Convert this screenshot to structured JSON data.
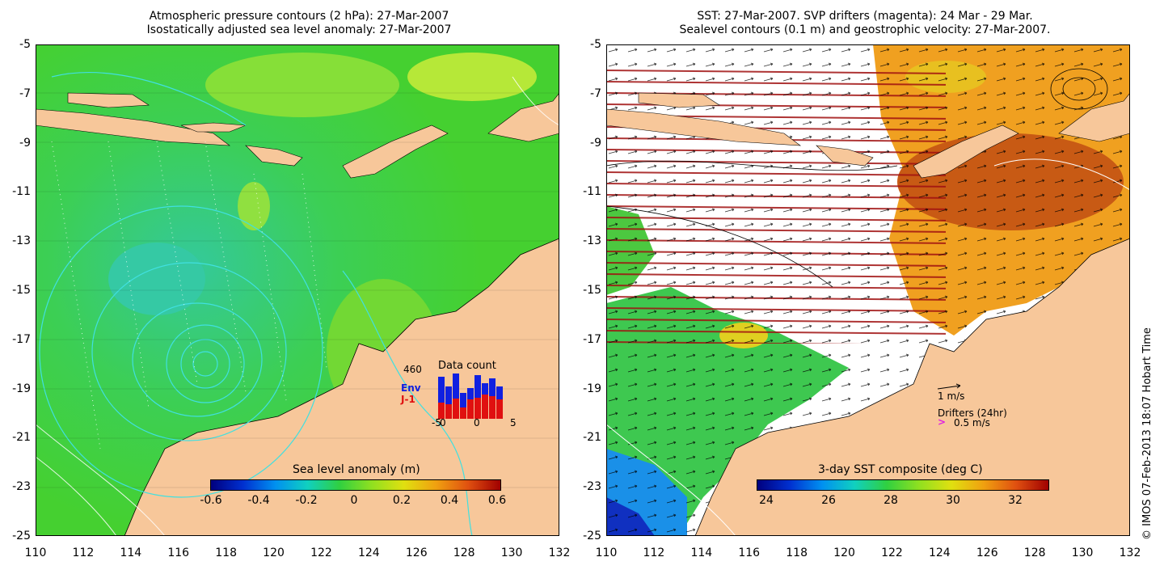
{
  "left_panel": {
    "title_line1": "Atmospheric pressure contours (2 hPa): 27-Mar-2007",
    "title_line2": "Isostatically adjusted sea level anomaly: 27-Mar-2007",
    "colorbar_title": "Sea level anomaly (m)",
    "colorbar_ticks": [
      "-0.6",
      "-0.4",
      "-0.2",
      "0",
      "0.2",
      "0.4",
      "0.6"
    ],
    "inset": {
      "count_label": "460",
      "title": "Data count",
      "legend_env": "Env",
      "legend_j1": "J-1",
      "xticks": [
        "-5",
        "0",
        "0",
        "5"
      ],
      "env_color": "#1020e0",
      "j1_color": "#e01010"
    }
  },
  "right_panel": {
    "title_line1": "SST: 27-Mar-2007. SVP drifters (magenta): 24 Mar - 29 Mar.",
    "title_line2": "Sealevel contours (0.1 m) and geostrophic velocity: 27-Mar-2007.",
    "colorbar_title": "3-day SST composite (deg C)",
    "colorbar_ticks": [
      "24",
      "26",
      "28",
      "30",
      "32"
    ],
    "velocity_label": "1 m/s",
    "drifters_label": "Drifters (24hr)",
    "drifters_speed": "0.5 m/s",
    "drifter_color": "#e020e0"
  },
  "y_ticks": [
    "-5",
    "-7",
    "-9",
    "-11",
    "-13",
    "-15",
    "-17",
    "-19",
    "-21",
    "-23",
    "-25"
  ],
  "x_ticks": [
    "110",
    "112",
    "114",
    "116",
    "118",
    "120",
    "122",
    "124",
    "126",
    "128",
    "130",
    "132"
  ],
  "copyright": "© IMOS 07-Feb-2013 18:07 Hobart Time",
  "colors": {
    "land": "#f7c79a",
    "ocean_green": "#3fcf2f",
    "ocean_light": "#7ddf3a",
    "ocean_cyan": "#35c99a",
    "sst_orange": "#f0a020",
    "sst_red": "#b84010"
  }
}
